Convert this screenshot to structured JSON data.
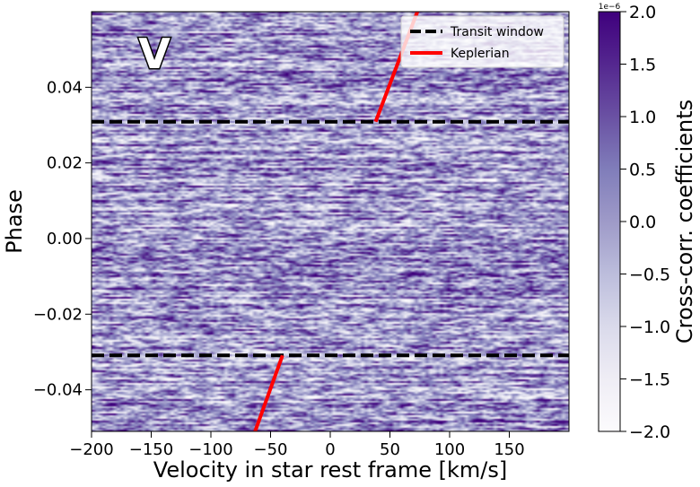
{
  "chart_data": {
    "type": "heatmap",
    "panel_label": "V",
    "xlabel": "Velocity in star rest frame [km/s]",
    "ylabel": "Phase",
    "xlim": [
      -200,
      200
    ],
    "ylim": [
      -0.051,
      0.06
    ],
    "x_ticks": [
      -200,
      -150,
      -100,
      -50,
      0,
      50,
      100,
      150
    ],
    "x_tick_labels": [
      "−200",
      "−150",
      "−100",
      "−50",
      "0",
      "50",
      "100",
      "150"
    ],
    "y_ticks": [
      -0.04,
      -0.02,
      0.0,
      0.02,
      0.04
    ],
    "y_tick_labels": [
      "−0.04",
      "−0.02",
      "0.00",
      "0.02",
      "0.04"
    ],
    "colormap": "Purples",
    "colorbar": {
      "label": "Cross-corr. coefficients",
      "scale_label": "1e−6",
      "vmin": -2.0,
      "vmax": 2.0,
      "ticks": [
        -2.0,
        -1.5,
        -1.0,
        -0.5,
        0.0,
        0.5,
        1.0,
        1.5,
        2.0
      ],
      "tick_labels": [
        "−2.0",
        "−1.5",
        "−1.0",
        "−0.5",
        "0.0",
        "0.5",
        "1.0",
        "1.5",
        "2.0"
      ],
      "color_low": "#fcfbfd",
      "color_high": "#3f007d"
    },
    "legend": {
      "position": "upper right",
      "entries": [
        {
          "label": "Transit window",
          "style": "dashed",
          "color": "#000000"
        },
        {
          "label": "Keplerian",
          "style": "solid",
          "color": "#ff0000"
        }
      ]
    },
    "transit_window_phases": [
      -0.0309,
      0.0309
    ],
    "keplerian_segments": [
      {
        "x": [
          -63,
          -40
        ],
        "y": [
          -0.051,
          -0.0309
        ]
      },
      {
        "x": [
          38,
          73
        ],
        "y": [
          0.0309,
          0.06
        ]
      }
    ]
  }
}
